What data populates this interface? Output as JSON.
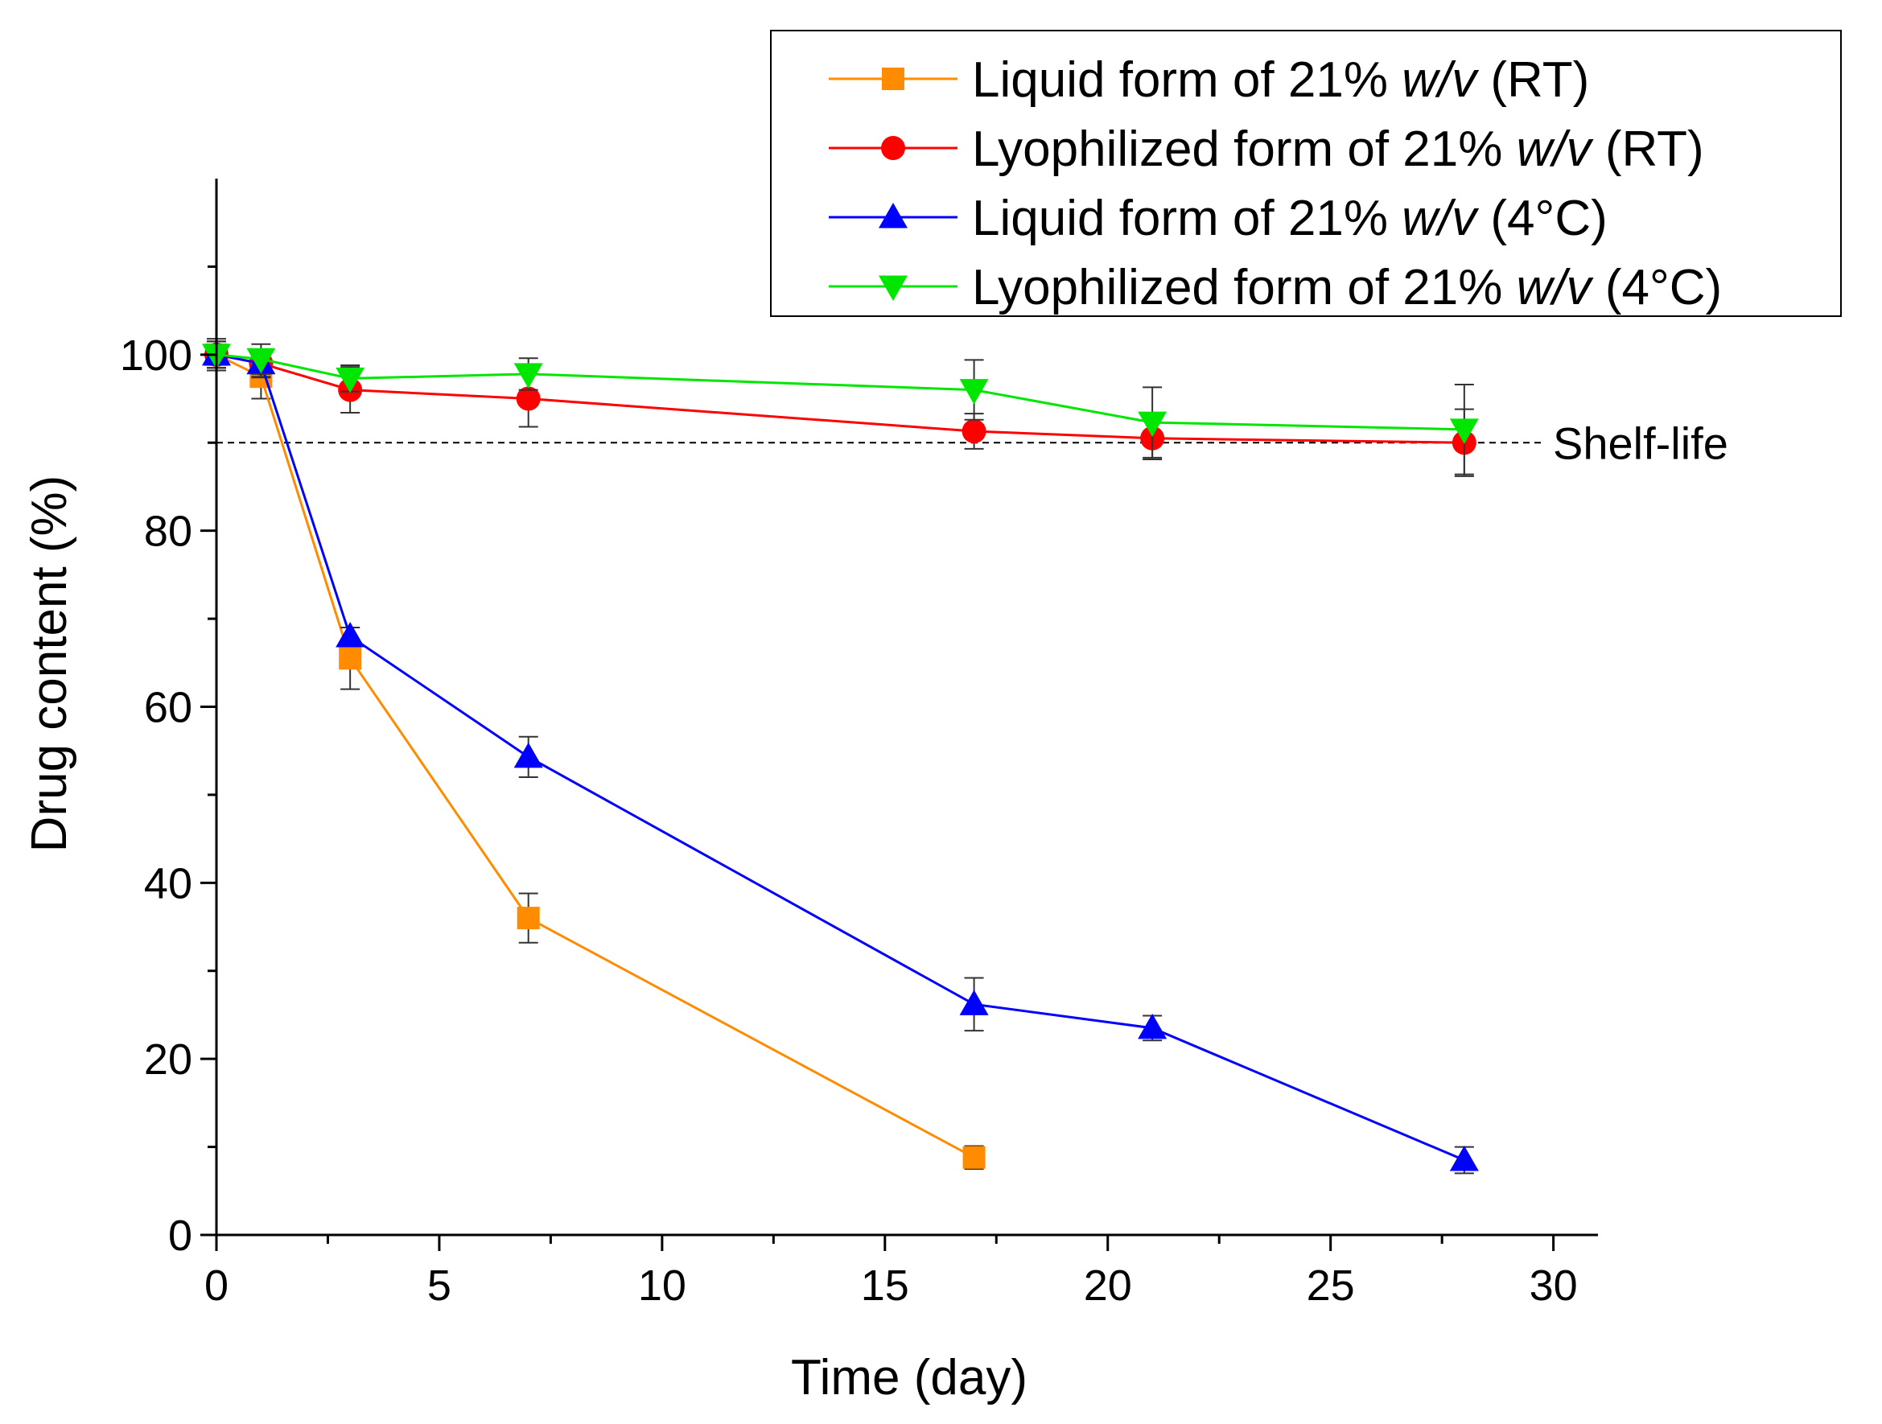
{
  "chart_data": {
    "type": "line",
    "title": "",
    "xlabel": "Time (day)",
    "ylabel": "Drug content (%)",
    "xlim": [
      0,
      31
    ],
    "ylim": [
      0,
      120
    ],
    "xticks": [
      0,
      5,
      10,
      15,
      20,
      25,
      30
    ],
    "yticks": [
      0,
      20,
      40,
      60,
      80,
      100
    ],
    "grid": false,
    "legend_position": "top-right",
    "reference_line": {
      "y": 90,
      "label": "Shelf-life",
      "style": "dashed",
      "color": "#000000"
    },
    "series": [
      {
        "name": "Liquid form of 21% w/v (RT)",
        "legend_parts": [
          "Liquid form of 21% ",
          "w/v",
          " (RT)"
        ],
        "color": "#ff8c00",
        "marker": "square",
        "x": [
          0,
          1,
          3,
          7,
          17
        ],
        "y": [
          100,
          97.5,
          65.5,
          36,
          8.8
        ],
        "err": [
          1.5,
          2.5,
          3.5,
          2.8,
          1.3
        ]
      },
      {
        "name": "Lyophilized form of 21% w/v (RT)",
        "legend_parts": [
          "Lyophilized form of 21% ",
          "w/v",
          " (RT)"
        ],
        "color": "#ff0000",
        "marker": "circle",
        "x": [
          0,
          1,
          3,
          7,
          17,
          21,
          28
        ],
        "y": [
          100,
          99,
          96,
          95,
          91.3,
          90.5,
          90
        ],
        "err": [
          1.8,
          1.6,
          2.6,
          3.2,
          2.0,
          2.4,
          3.8
        ]
      },
      {
        "name": "Liquid form of 21% w/v (4°C)",
        "legend_parts": [
          "Liquid form of 21% ",
          "w/v",
          " (4°C)"
        ],
        "color": "#0000ff",
        "marker": "triangle-up",
        "x": [
          0,
          1,
          3,
          7,
          17,
          21,
          28
        ],
        "y": [
          100,
          99,
          68,
          54.3,
          26.2,
          23.5,
          8.5
        ],
        "err": [
          1.5,
          1.5,
          1.0,
          2.3,
          3.0,
          1.4,
          1.5
        ]
      },
      {
        "name": "Lyophilized form of 21% w/v (4°C)",
        "legend_parts": [
          "Lyophilized form of 21% ",
          "w/v",
          " (4°C)"
        ],
        "color": "#00e600",
        "marker": "triangle-down",
        "x": [
          0,
          1,
          3,
          7,
          17,
          21,
          28
        ],
        "y": [
          100,
          99.5,
          97.3,
          97.8,
          96,
          92.3,
          91.5
        ],
        "err": [
          1.5,
          1.7,
          1.5,
          1.8,
          3.4,
          4.0,
          5.1
        ]
      }
    ]
  }
}
